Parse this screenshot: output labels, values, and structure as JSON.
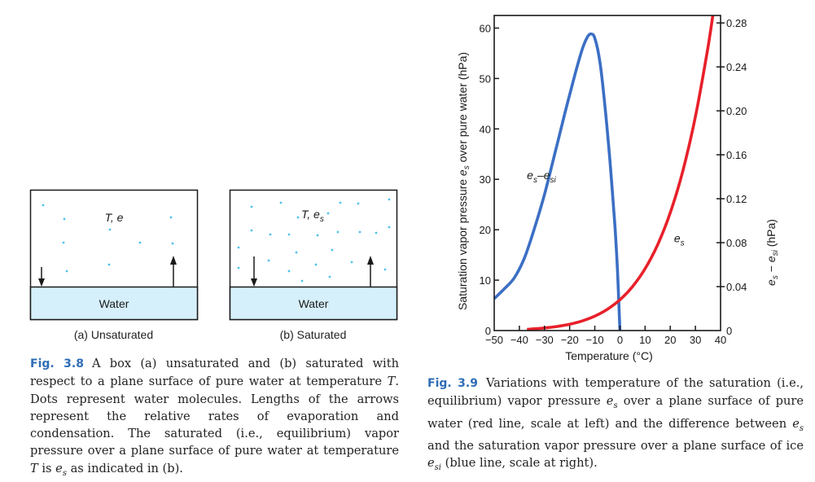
{
  "figure_3_8": {
    "box_a": {
      "state_label": "T, e",
      "water_label": "Water",
      "caption": "(a) Unsaturated"
    },
    "box_b": {
      "state_label_main": "T, e",
      "state_label_sub": "s",
      "water_label": "Water",
      "caption": "(b) Saturated"
    },
    "colors": {
      "molecule": "#4fc3ea",
      "water_fill": "#d6f0fb",
      "caption_label": "#2f6db5"
    },
    "caption": {
      "label": "Fig. 3.8",
      "text_1": "A box (a) unsaturated and (b) saturated with respect to a plane surface of pure water at temperature ",
      "T": "T",
      "text_2": ". Dots represent water molecules. Lengths of the arrows represent the relative rates of evaporation and condensation. The saturated (i.e., equilibrium) vapor pressure over a plane surface of pure water at temperature ",
      "T2": "T",
      "text_3": " is ",
      "es_main": "e",
      "es_sub": "s",
      "text_4": " as indicated in (b)."
    }
  },
  "figure_3_9": {
    "caption": {
      "label": "Fig. 3.9",
      "text_1": "Variations with temperature of the saturation (i.e., equilibrium) vapor pressure ",
      "es_main": "e",
      "es_sub": "s",
      "text_2": " over a plane surface of pure water (red line, scale at left) and the difference between ",
      "es2_main": "e",
      "es2_sub": "s",
      "text_3": " and the saturation vapor pressure over a plane surface of ice ",
      "esi_main": "e",
      "esi_sub": "si",
      "text_4": " (blue line, scale at right)."
    }
  },
  "chart_data": {
    "type": "line",
    "title": "",
    "xlabel": "Temperature (°C)",
    "ylabel": "Saturation vapor pressure e_s over pure water (hPa)",
    "ylabel_parts": {
      "pre": "Saturation vapor pressure ",
      "e": "e",
      "sub": "s",
      "post": " over pure water (hPa)"
    },
    "y2label_parts": {
      "e1": "e",
      "sub1": "s",
      "dash": " − ",
      "e2": "e",
      "sub2": "si",
      "post": " (hPa)"
    },
    "xlim": [
      -50,
      40
    ],
    "ylim": [
      0,
      62.5
    ],
    "y2lim": [
      0,
      0.2868
    ],
    "xticks": [
      -50,
      -40,
      -30,
      -20,
      -10,
      0,
      10,
      20,
      30,
      40
    ],
    "xtick_labels": [
      "−50",
      "−40",
      "−30",
      "−20",
      "−10",
      "0",
      "10",
      "20",
      "30",
      "40"
    ],
    "yticks": [
      0,
      10,
      20,
      30,
      40,
      50,
      60
    ],
    "ytick_labels": [
      "0",
      "10",
      "20",
      "30",
      "40",
      "50",
      "60"
    ],
    "y2ticks": [
      0,
      0.04,
      0.08,
      0.12,
      0.16,
      0.2,
      0.24,
      0.28
    ],
    "y2tick_labels": [
      "0",
      "0.04",
      "0.08",
      "0.12",
      "0.16",
      "0.20",
      "0.24",
      "0.28"
    ],
    "grid": false,
    "series": [
      {
        "name": "e_s",
        "label_main": "e",
        "label_sub": "s",
        "axis": "left",
        "color": "#e8202a",
        "x": [
          -37,
          -35,
          -30,
          -25,
          -20,
          -15,
          -10,
          -5,
          0,
          5,
          10,
          15,
          20,
          25,
          30,
          35,
          38
        ],
        "values": [
          0.22,
          0.3,
          0.51,
          0.81,
          1.25,
          1.91,
          2.86,
          4.22,
          6.11,
          8.72,
          12.27,
          17.04,
          23.37,
          31.67,
          42.43,
          56.22,
          66.3
        ]
      },
      {
        "name": "e_s − e_si",
        "label_main": "e",
        "label_sub1": "s",
        "label_dash": "–",
        "label_sub2": "si",
        "axis": "right",
        "color": "#3b6fc4",
        "x": [
          -50,
          -46,
          -42,
          -38,
          -34,
          -30,
          -26,
          -22,
          -18,
          -15,
          -13,
          -11.5,
          -10,
          -8,
          -6,
          -4,
          -2,
          -1,
          0
        ],
        "values": [
          0.029,
          0.038,
          0.048,
          0.066,
          0.093,
          0.124,
          0.16,
          0.197,
          0.232,
          0.256,
          0.267,
          0.27,
          0.266,
          0.245,
          0.205,
          0.155,
          0.095,
          0.055,
          0.0
        ]
      }
    ]
  }
}
